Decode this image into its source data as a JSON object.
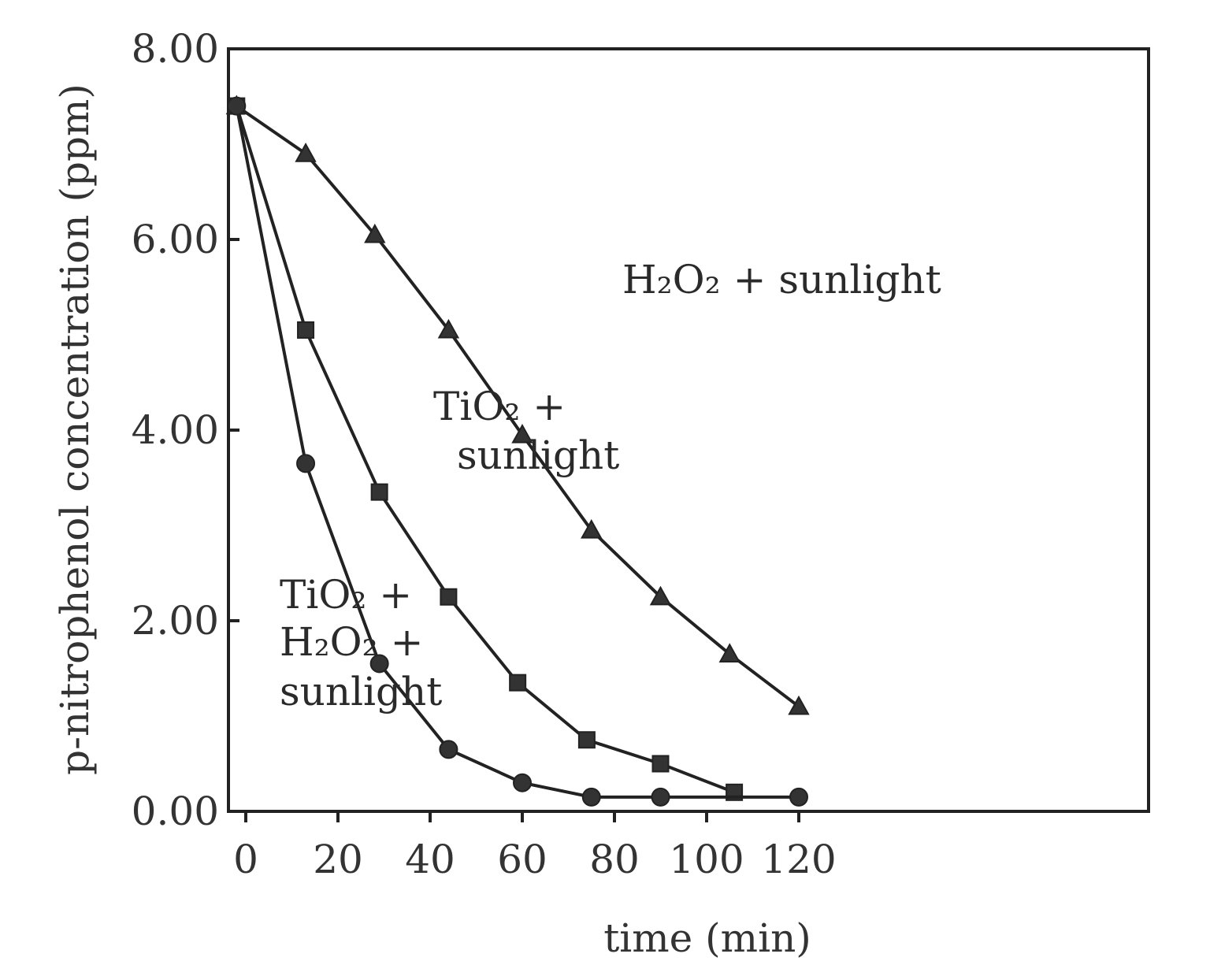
{
  "chart_data": {
    "type": "line",
    "title": "",
    "xlabel": "time (min)",
    "ylabel": "p-nitrophenol concentration (ppm)",
    "xlim": [
      -3,
      122
    ],
    "ylim": [
      0,
      8
    ],
    "x_ticks": [
      0,
      20,
      40,
      60,
      80,
      100,
      120
    ],
    "x_tick_labels": [
      "0",
      "20",
      "40",
      "60",
      "80",
      "100",
      "120"
    ],
    "y_ticks": [
      0,
      2,
      4,
      6,
      8
    ],
    "y_tick_labels": [
      "0.00",
      "2.00",
      "4.00",
      "6.00",
      "8.00"
    ],
    "grid": false,
    "legend": "none",
    "series": [
      {
        "label": "H2O2 + sunlight",
        "marker": "triangle",
        "x": [
          -2,
          13,
          28,
          44,
          60,
          75,
          90,
          105,
          120
        ],
        "y": [
          7.4,
          6.9,
          6.05,
          5.05,
          3.95,
          2.95,
          2.25,
          1.65,
          1.1
        ]
      },
      {
        "label": "TiO2 + sunlight",
        "marker": "square",
        "x": [
          -2,
          13,
          29,
          44,
          59,
          74,
          90,
          106
        ],
        "y": [
          7.4,
          5.05,
          3.35,
          2.25,
          1.35,
          0.75,
          0.5,
          0.2
        ]
      },
      {
        "label": "TiO2 + H2O2 + sunlight",
        "marker": "circle",
        "x": [
          -2,
          13,
          29,
          44,
          60,
          75,
          90,
          120
        ],
        "y": [
          7.4,
          3.65,
          1.55,
          0.65,
          0.3,
          0.15,
          0.15,
          0.15
        ]
      }
    ],
    "annotations": {
      "h2o2": "H₂O₂ + sunlight",
      "tio2_line1": "TiO₂ +",
      "tio2_line2": "sunlight",
      "combo_line1": "TiO₂ +",
      "combo_line2": "H₂O₂ +",
      "combo_line3": "sunlight"
    }
  }
}
